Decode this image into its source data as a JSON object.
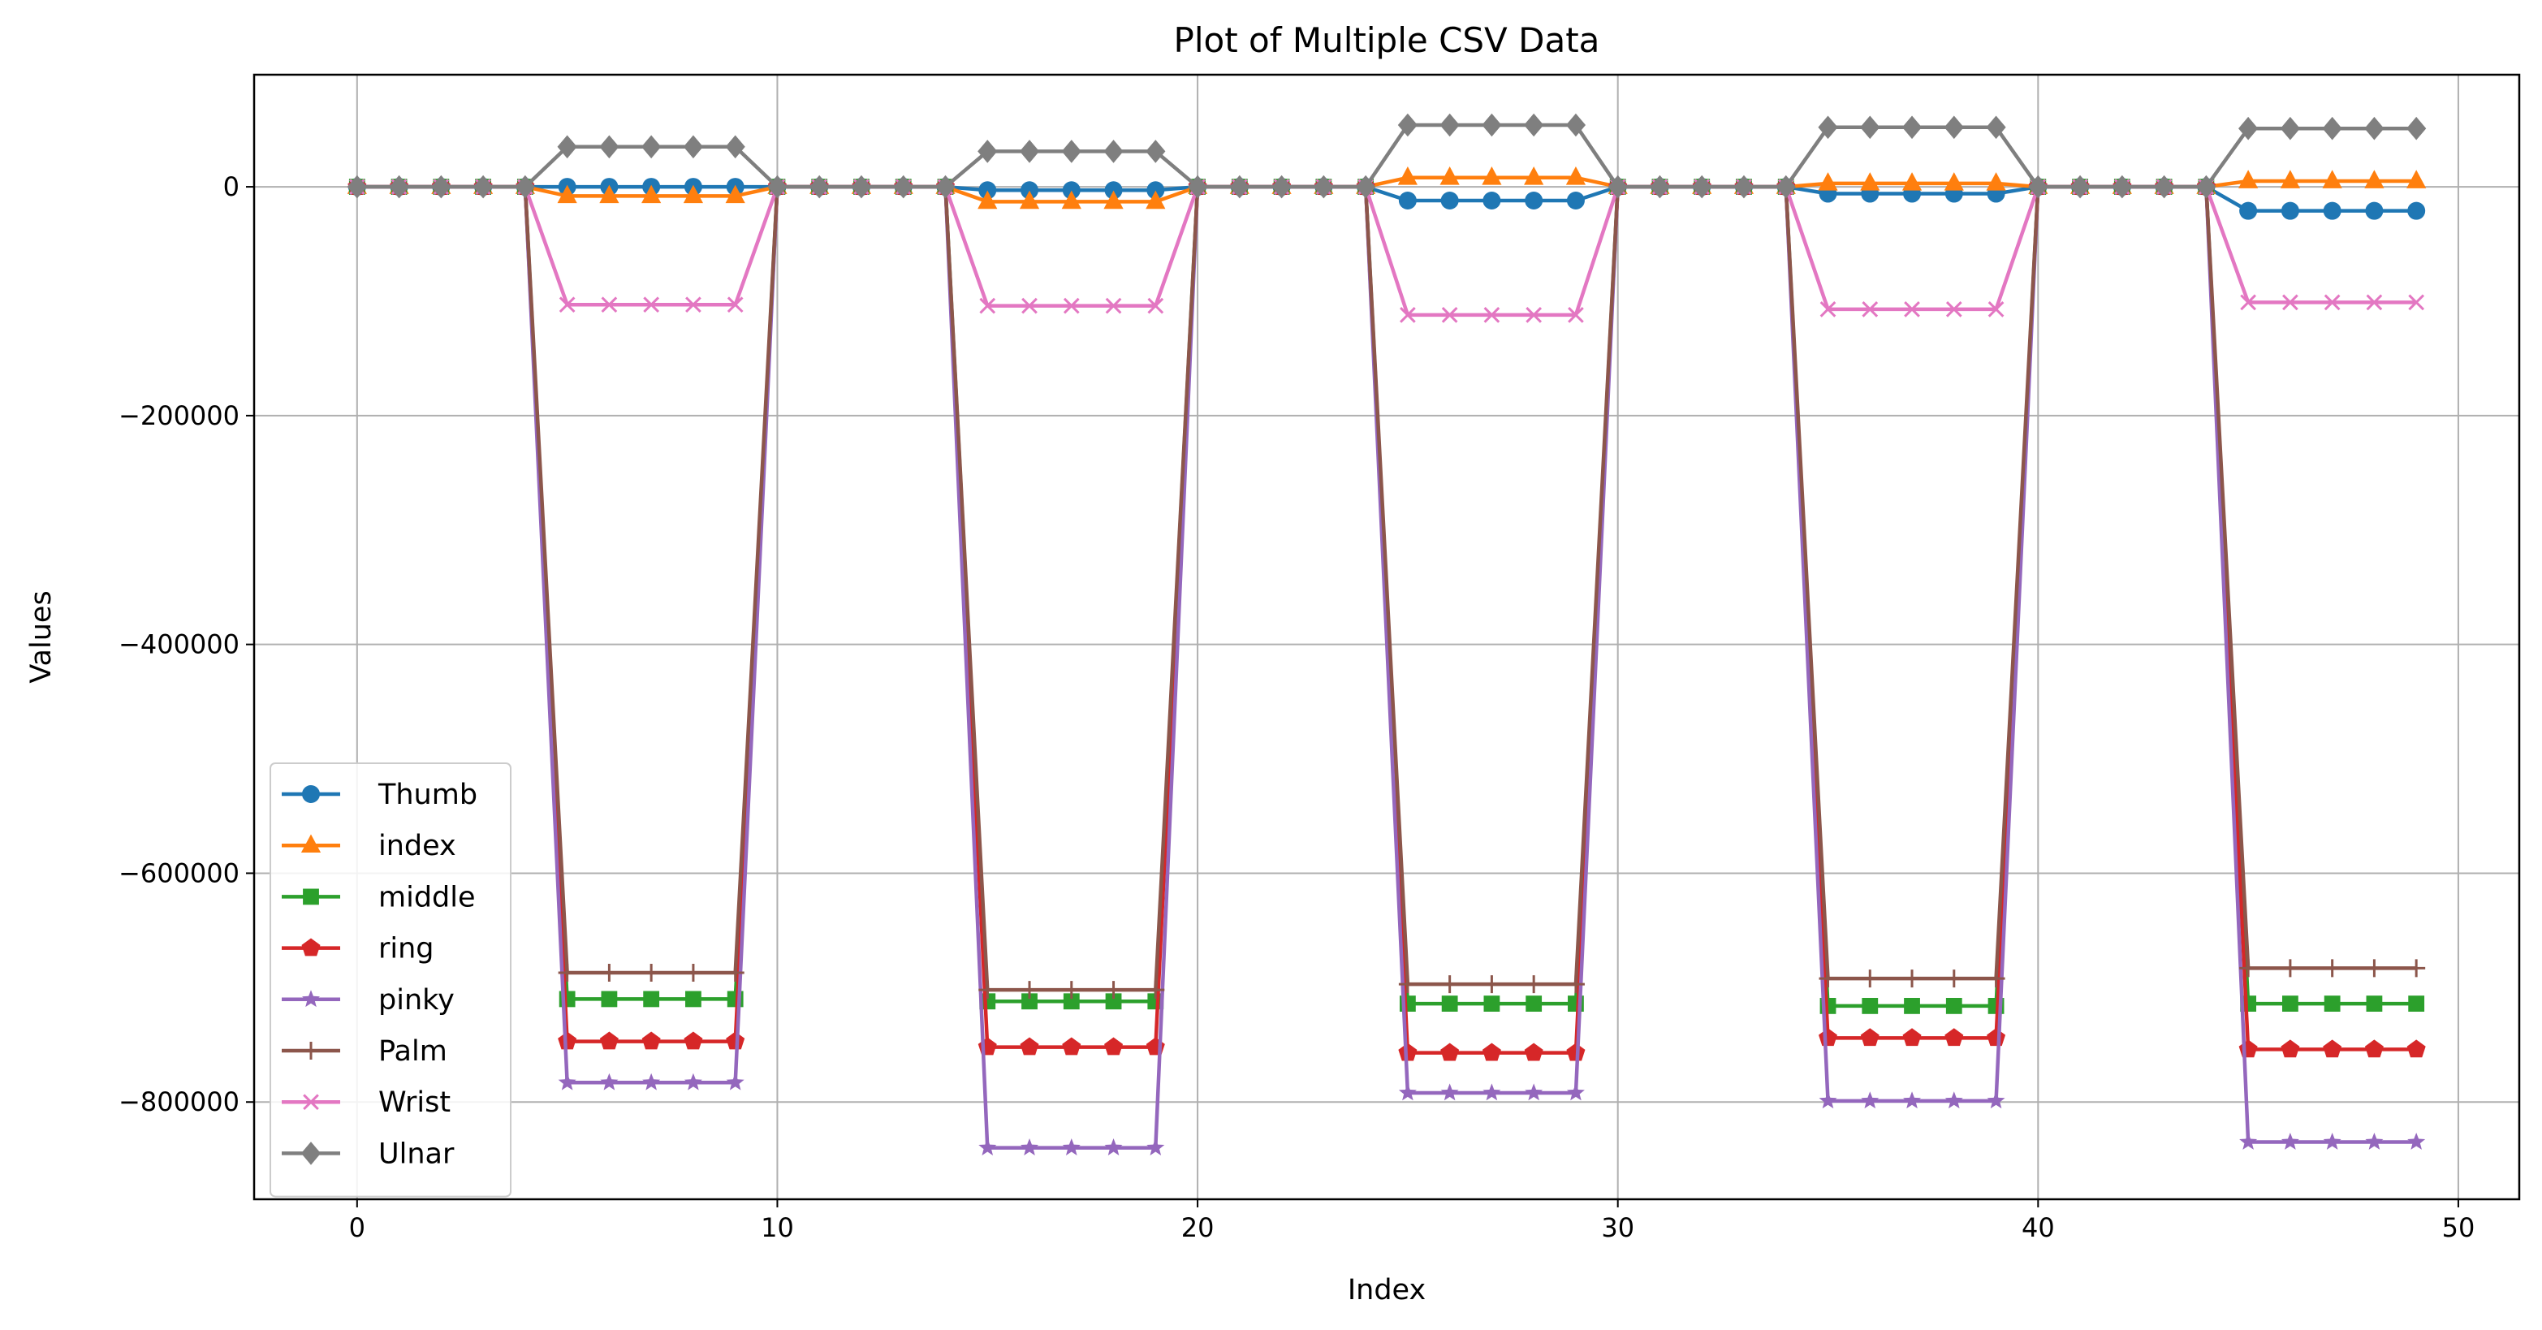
{
  "chart_data": {
    "type": "line",
    "title": "Plot of Multiple CSV Data",
    "xlabel": "Index",
    "ylabel": "Values",
    "xlim": [
      -2.45,
      51.45
    ],
    "ylim": [
      -885000,
      98000
    ],
    "xticks": [
      0,
      10,
      20,
      30,
      40,
      50
    ],
    "yticks": [
      0,
      -200000,
      -400000,
      -600000,
      -800000
    ],
    "ytick_labels": [
      "0",
      "−200000",
      "−400000",
      "−600000",
      "−800000"
    ],
    "grid": true,
    "legend_position": "lower-left",
    "x": [
      0,
      1,
      2,
      3,
      4,
      5,
      6,
      7,
      8,
      9,
      10,
      11,
      12,
      13,
      14,
      15,
      16,
      17,
      18,
      19,
      20,
      21,
      22,
      23,
      24,
      25,
      26,
      27,
      28,
      29,
      30,
      31,
      32,
      33,
      34,
      35,
      36,
      37,
      38,
      39,
      40,
      41,
      42,
      43,
      44,
      45,
      46,
      47,
      48,
      49
    ],
    "blocks": [
      [
        5,
        9
      ],
      [
        15,
        19
      ],
      [
        25,
        29
      ],
      [
        35,
        39
      ],
      [
        45,
        49
      ]
    ],
    "series": [
      {
        "name": "Thumb",
        "color": "#1f77b4",
        "marker": "circle",
        "block_values": [
          0,
          -3000,
          -12000,
          -6000,
          -21000
        ]
      },
      {
        "name": "index",
        "color": "#ff7f0e",
        "marker": "triangle",
        "block_values": [
          -8000,
          -13000,
          8000,
          3000,
          5000
        ]
      },
      {
        "name": "middle",
        "color": "#2ca02c",
        "marker": "square",
        "block_values": [
          -710000,
          -712000,
          -714000,
          -716000,
          -714000
        ]
      },
      {
        "name": "ring",
        "color": "#d62728",
        "marker": "pentagon",
        "block_values": [
          -747000,
          -752000,
          -757000,
          -744000,
          -754000
        ]
      },
      {
        "name": "pinky",
        "color": "#9467bd",
        "marker": "star",
        "block_values": [
          -783000,
          -840000,
          -792000,
          -799000,
          -835000
        ]
      },
      {
        "name": "Palm",
        "color": "#8c564b",
        "marker": "plus",
        "block_values": [
          -687000,
          -702000,
          -697000,
          -692000,
          -683000
        ]
      },
      {
        "name": "Wrist",
        "color": "#e377c2",
        "marker": "x",
        "block_values": [
          -103000,
          -104000,
          -112000,
          -107000,
          -101000
        ]
      },
      {
        "name": "Ulnar",
        "color": "#7f7f7f",
        "marker": "diamond",
        "block_values": [
          35000,
          31000,
          54000,
          52000,
          51000
        ]
      }
    ]
  }
}
